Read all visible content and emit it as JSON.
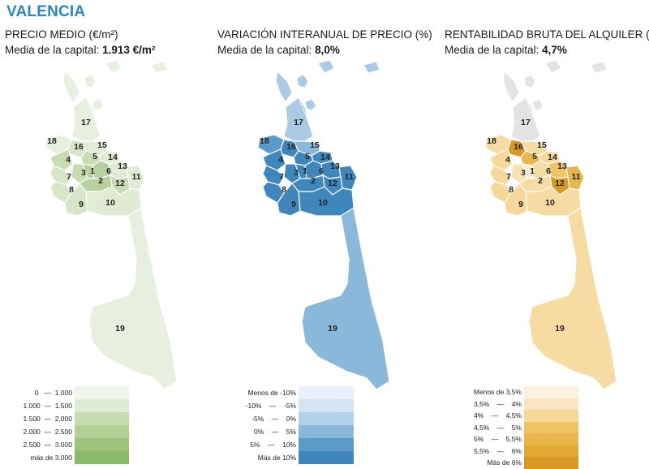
{
  "city": "VALENCIA",
  "panels": [
    {
      "id": "precio",
      "title": "PRECIO MEDIO (€/m²)",
      "subtitle_prefix": "Media de la capital: ",
      "subtitle_value": "1.913 €/m²",
      "district_colors": {
        "1": "#b6d09e",
        "2": "#b6d09e",
        "3": "#c7dcb0",
        "4": "#c7dcb0",
        "5": "#c7dcb0",
        "6": "#b6d09e",
        "7": "#d6e6c6",
        "8": "#d6e6c6",
        "9": "#d6e6c6",
        "10": "#dfebd2",
        "11": "#dfebd2",
        "12": "#c7dcb0",
        "13": "#dfebd2",
        "14": "#dfebd2",
        "15": "#dfebd2",
        "16": "#d6e6c6",
        "17": "#e7f0de",
        "18": "#e7f0de",
        "19": "#e7f0de"
      },
      "legend": [
        {
          "label": "0   —  1.000",
          "color": "#eff5ea"
        },
        {
          "label": "1.000  —  1.500",
          "color": "#dfebd2"
        },
        {
          "label": "1.500  —  2.000",
          "color": "#c7dcb0"
        },
        {
          "label": "2.000  —  2.500",
          "color": "#b2cf96"
        },
        {
          "label": "2.500  —  3.000",
          "color": "#9ec37c"
        },
        {
          "label": "más de 3.000",
          "color": "#8bb96a"
        }
      ]
    },
    {
      "id": "variacion",
      "title": "VARIACIÓN INTERANUAL DE PRECIO (%)",
      "subtitle_prefix": "Media de la capital: ",
      "subtitle_value": "8,0%",
      "district_colors": {
        "1": "#3f86bd",
        "2": "#3f86bd",
        "3": "#3f86bd",
        "4": "#3f86bd",
        "5": "#3f86bd",
        "6": "#3f86bd",
        "7": "#3f86bd",
        "8": "#3f86bd",
        "9": "#3f86bd",
        "10": "#3f86bd",
        "11": "#3f86bd",
        "12": "#3f86bd",
        "13": "#3f86bd",
        "14": "#3f86bd",
        "15": "#8ab8db",
        "16": "#3f86bd",
        "17": "#a9cbe5",
        "18": "#5b9bc9",
        "19": "#8ab8db"
      },
      "legend": [
        {
          "label": "Menos de -10%",
          "color": "#e9f2fa"
        },
        {
          "label": "-10%    —    -5%",
          "color": "#d3e5f3"
        },
        {
          "label": "-5%    —    0%",
          "color": "#b2d1ea"
        },
        {
          "label": "0%    —    5%",
          "color": "#8ab8db"
        },
        {
          "label": "5%    —    10%",
          "color": "#5b9bc9"
        },
        {
          "label": "Más de 10%",
          "color": "#3f86bd"
        }
      ]
    },
    {
      "id": "rentabilidad",
      "title": "RENTABILIDAD BRUTA DEL ALQUILER (%)",
      "subtitle_prefix": "Media de la capital: ",
      "subtitle_value": "4,7%",
      "district_colors": {
        "1": "#fbefd3",
        "2": "#f6dca2",
        "3": "#f8e3b3",
        "4": "#f5d89a",
        "5": "#e9b64a",
        "6": "#f6dca2",
        "7": "#f5d89a",
        "8": "#f5d89a",
        "9": "#f5d89a",
        "10": "#f6dca2",
        "11": "#e9b64a",
        "12": "#d89a24",
        "13": "#f0c466",
        "14": "#f5d89a",
        "15": "#f6dca2",
        "16": "#d89a24",
        "17": "#e3e3e3",
        "18": "#f6dca2",
        "19": "#f6dca2"
      },
      "legend": [
        {
          "label": "Menos de 3,5%",
          "color": "#fcf1df"
        },
        {
          "label": "3,5%    —    4%",
          "color": "#f9e5c3"
        },
        {
          "label": "4%    —    4,5%",
          "color": "#f6d898"
        },
        {
          "label": "4,5%    —    5%",
          "color": "#f0c466"
        },
        {
          "label": "5%    —    5,5%",
          "color": "#e9b64a"
        },
        {
          "label": "5,5%    —    6%",
          "color": "#e2aa34"
        },
        {
          "label": "Más de 6%",
          "color": "#d89a24"
        }
      ]
    }
  ]
}
